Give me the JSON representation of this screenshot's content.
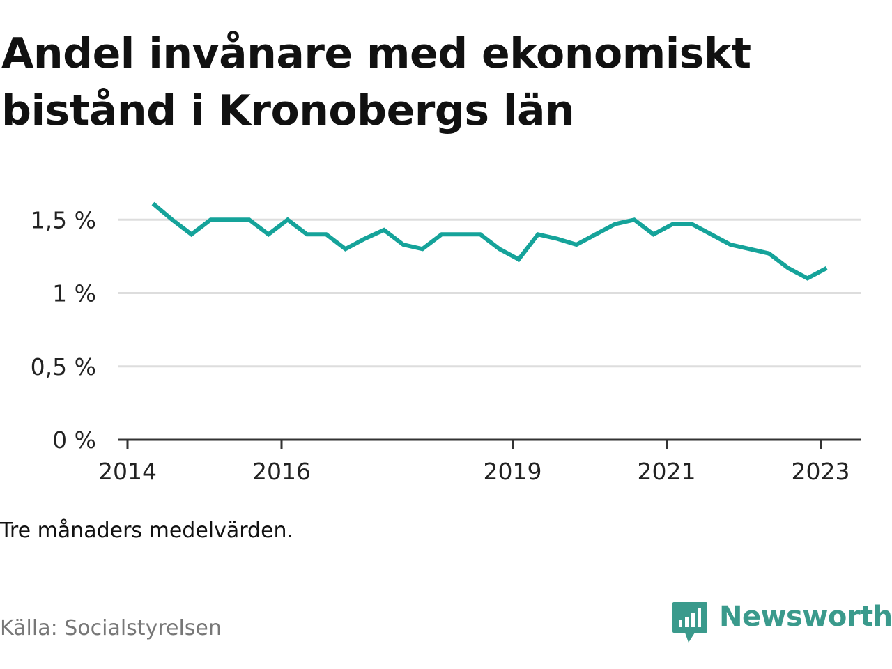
{
  "title": "Andel invånare med ekonomiskt bistånd i Kronobergs län",
  "note": "Tre månaders medelvärden.",
  "source": "Källa: Socialstyrelsen",
  "brand": {
    "name": "Newsworthy",
    "icon": "newsworthy-bar-chart-icon",
    "color": "#3a9a8c"
  },
  "colors": {
    "line": "#15a39a",
    "grid": "#dddddd",
    "axis": "#333333"
  },
  "chart_data": {
    "type": "line",
    "title": "Andel invånare med ekonomiskt bistånd i Kronobergs län",
    "xlabel": "",
    "ylabel": "",
    "ylim": [
      0,
      1.5
    ],
    "y_ticks": [
      {
        "value": 0,
        "label": "0 %"
      },
      {
        "value": 0.5,
        "label": "0,5 %"
      },
      {
        "value": 1,
        "label": "1 %"
      },
      {
        "value": 1.5,
        "label": "1,5 %"
      }
    ],
    "x_ticks": [
      {
        "value": 2014.0,
        "label": "2014"
      },
      {
        "value": 2016.0,
        "label": "2016"
      },
      {
        "value": 2019.0,
        "label": "2019"
      },
      {
        "value": 2021.0,
        "label": "2021"
      },
      {
        "value": 2023.0,
        "label": "2023"
      }
    ],
    "grid": true,
    "x": [
      2014.33,
      2014.58,
      2014.83,
      2015.08,
      2015.33,
      2015.58,
      2015.83,
      2016.08,
      2016.33,
      2016.58,
      2016.83,
      2017.08,
      2017.33,
      2017.58,
      2017.83,
      2018.08,
      2018.33,
      2018.58,
      2018.83,
      2019.08,
      2019.33,
      2019.58,
      2019.83,
      2020.08,
      2020.33,
      2020.58,
      2020.83,
      2021.08,
      2021.33,
      2021.58,
      2021.83,
      2022.08,
      2022.33,
      2022.58,
      2022.83,
      2023.08
    ],
    "series": [
      {
        "values": [
          1.61,
          1.5,
          1.4,
          1.5,
          1.5,
          1.5,
          1.4,
          1.5,
          1.4,
          1.4,
          1.3,
          1.37,
          1.43,
          1.33,
          1.3,
          1.4,
          1.4,
          1.4,
          1.3,
          1.23,
          1.4,
          1.37,
          1.33,
          1.4,
          1.47,
          1.5,
          1.4,
          1.47,
          1.47,
          1.4,
          1.33,
          1.3,
          1.27,
          1.17,
          1.1,
          1.17
        ]
      }
    ]
  }
}
